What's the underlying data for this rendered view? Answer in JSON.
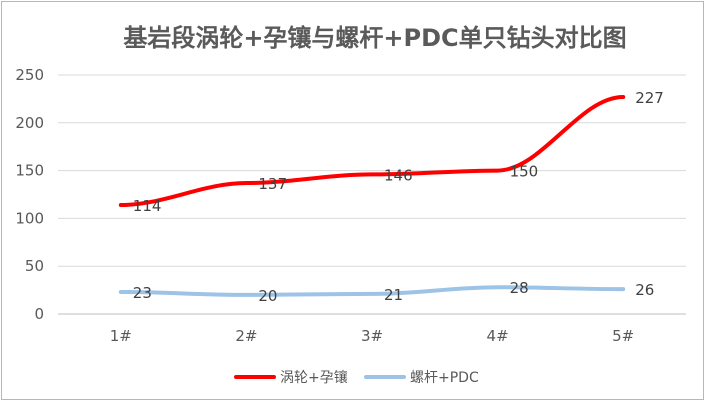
{
  "chart_data": {
    "type": "line",
    "title": "基岩段涡轮+孕镶与螺杆+PDC单只钻头对比图",
    "categories": [
      "1#",
      "2#",
      "3#",
      "4#",
      "5#"
    ],
    "series": [
      {
        "name": "涡轮+孕镶",
        "values": [
          114,
          137,
          146,
          150,
          227
        ],
        "color": "#ff0000"
      },
      {
        "name": "螺杆+PDC",
        "values": [
          23,
          20,
          21,
          28,
          26
        ],
        "color": "#9dc3e6"
      }
    ],
    "y_ticks": [
      "0",
      "50",
      "100",
      "150",
      "200",
      "250"
    ],
    "ylim": [
      0,
      250
    ],
    "grid": true,
    "legend_position": "bottom"
  }
}
